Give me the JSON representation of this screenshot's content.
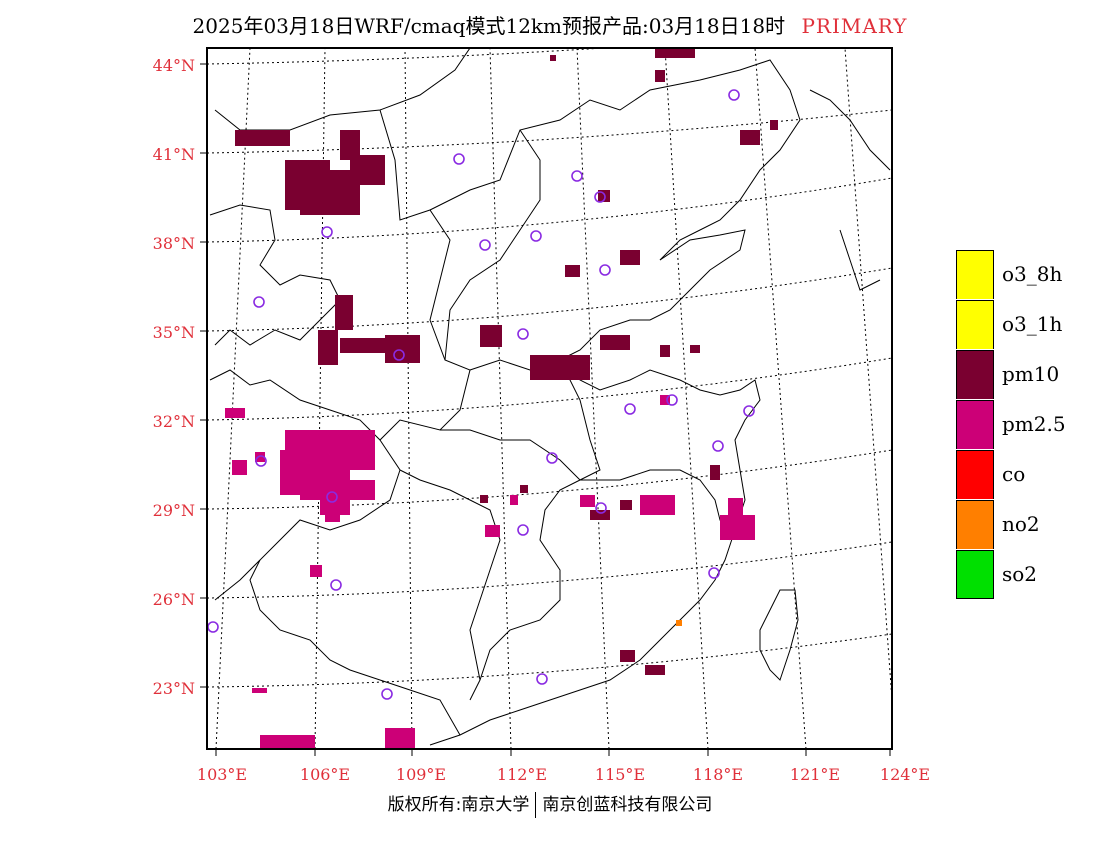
{
  "title": {
    "main": "2025年03月18日WRF/cmaq模式12km预报产品:03月18日18时",
    "tag": "PRIMARY",
    "tag_color": "#e0303a"
  },
  "map": {
    "lon_labels": [
      "103°E",
      "106°E",
      "109°E",
      "112°E",
      "115°E",
      "118°E",
      "121°E",
      "124°E"
    ],
    "lat_labels": [
      "44°N",
      "41°N",
      "38°N",
      "35°N",
      "32°N",
      "29°N",
      "26°N",
      "23°N"
    ],
    "pollutant_colors": {
      "pm10": "#7a0030",
      "pm2.5": "#cc0077",
      "no2": "#ff7f00"
    },
    "station_marker_color": "#8a2be2"
  },
  "legend": [
    {
      "label": "o3_8h",
      "color": "#ffff00"
    },
    {
      "label": "o3_1h",
      "color": "#ffff00"
    },
    {
      "label": "pm10",
      "color": "#7a0030"
    },
    {
      "label": "pm2.5",
      "color": "#cc0077"
    },
    {
      "label": "co",
      "color": "#ff0000"
    },
    {
      "label": "no2",
      "color": "#ff7f00"
    },
    {
      "label": "so2",
      "color": "#00e000"
    }
  ],
  "footer": {
    "left": "版权所有:南京大学",
    "right": "南京创蓝科技有限公司"
  }
}
